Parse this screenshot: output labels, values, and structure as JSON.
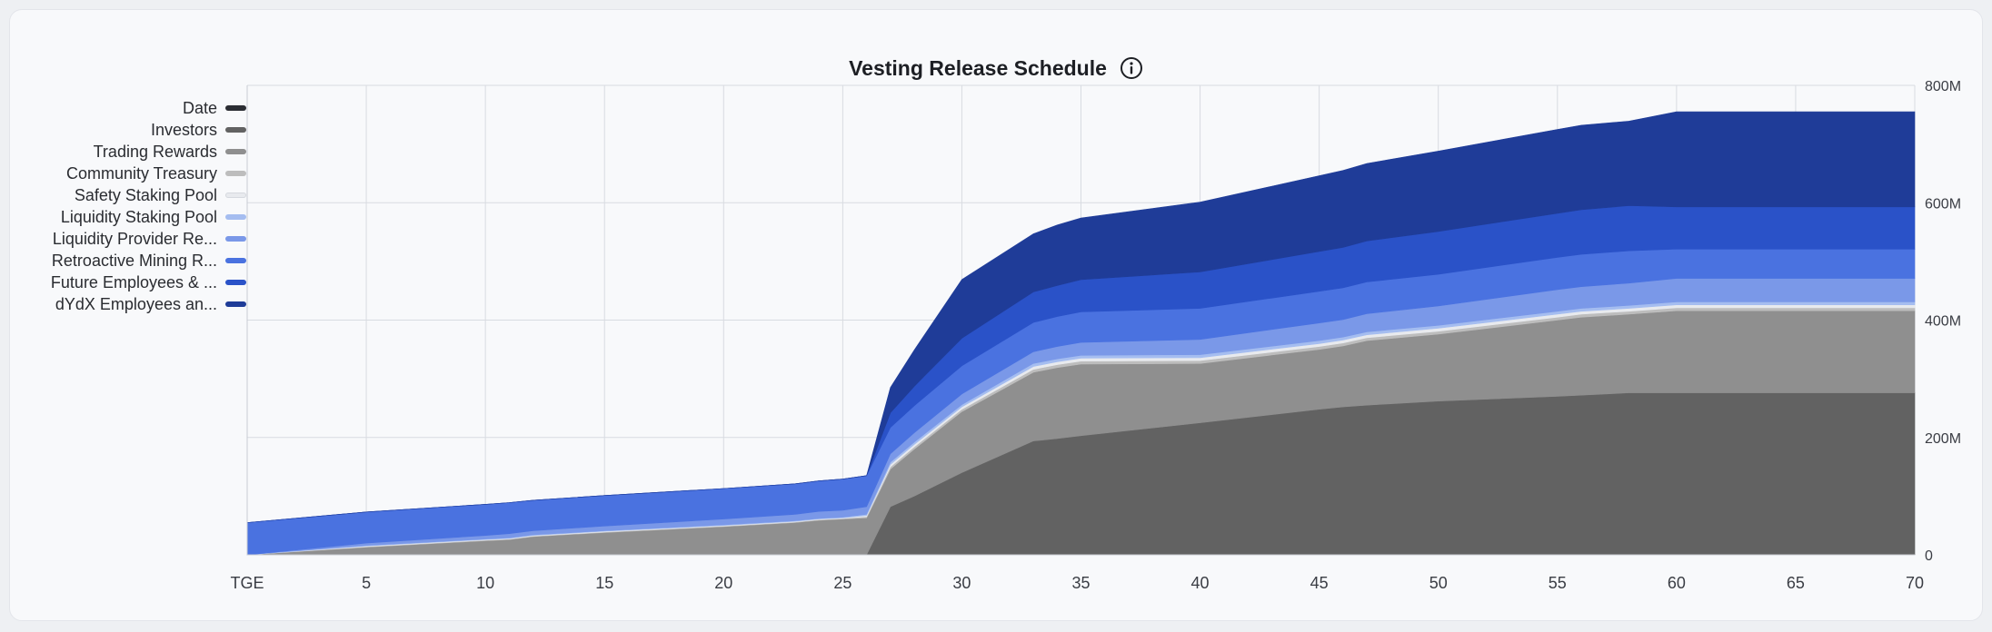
{
  "chart_data": {
    "type": "area",
    "stacked": true,
    "title": "Vesting Release Schedule",
    "x_ticks": [
      0,
      5,
      10,
      15,
      20,
      25,
      30,
      35,
      40,
      45,
      50,
      55,
      60,
      65,
      70
    ],
    "x_tick_labels": [
      "TGE",
      "5",
      "10",
      "15",
      "20",
      "25",
      "30",
      "35",
      "40",
      "45",
      "50",
      "55",
      "60",
      "65",
      "70"
    ],
    "y_ticks": [
      0,
      200,
      400,
      600,
      800
    ],
    "y_tick_labels": [
      "0",
      "200M",
      "400M",
      "600M",
      "800M"
    ],
    "xlim": [
      0,
      70
    ],
    "ylim": [
      0,
      800
    ],
    "legend_position": "left",
    "legend": [
      {
        "name": "Date",
        "color": "#2b2d33"
      },
      {
        "name": "Investors",
        "color": "#626262"
      },
      {
        "name": "Trading Rewards",
        "color": "#8f8f8f"
      },
      {
        "name": "Community Treasury",
        "color": "#bdbdbd"
      },
      {
        "name": "Safety Staking Pool",
        "color": "#e8eaee"
      },
      {
        "name": "Liquidity Staking Pool",
        "color": "#a5bdf0"
      },
      {
        "name": "Liquidity Provider Re...",
        "color": "#7a98e8"
      },
      {
        "name": "Retroactive Mining R...",
        "color": "#4a72e0"
      },
      {
        "name": "Future Employees & ...",
        "color": "#2a52c8"
      },
      {
        "name": "dYdX Employees an...",
        "color": "#1f3c98"
      }
    ],
    "x": [
      0,
      5,
      10,
      11,
      12,
      15,
      20,
      23,
      24,
      25,
      26,
      27,
      28,
      30,
      33,
      34,
      35,
      40,
      45,
      46,
      47,
      50,
      55,
      56,
      58,
      60,
      61,
      65,
      70
    ],
    "series": [
      {
        "name": "Investors",
        "color": "#626262",
        "values": [
          0,
          0,
          0,
          0,
          0,
          0,
          0,
          0,
          0,
          0,
          0,
          82,
          100,
          140,
          194,
          198,
          203,
          225,
          248,
          252,
          255,
          262,
          270,
          272,
          276,
          276,
          276,
          276,
          276
        ]
      },
      {
        "name": "Trading Rewards",
        "color": "#8f8f8f",
        "values": [
          0,
          13,
          24,
          26,
          31,
          38,
          48,
          55,
          59,
          61,
          63,
          64,
          80,
          104,
          117,
          121,
          122,
          101,
          102,
          104,
          110,
          114,
          130,
          133,
          134,
          140,
          140,
          140,
          140
        ]
      },
      {
        "name": "Community Treasury",
        "color": "#bdbdbd",
        "values": [
          0,
          1,
          1,
          1,
          1,
          1,
          1,
          1,
          1,
          1,
          2,
          4,
          4,
          4,
          5,
          5,
          5,
          5,
          5,
          5,
          5,
          5,
          5,
          5,
          5,
          5,
          5,
          5,
          5
        ]
      },
      {
        "name": "Safety Staking Pool",
        "color": "#e8eaee",
        "values": [
          0,
          1,
          1,
          1,
          1,
          1,
          1,
          1,
          1,
          1,
          2,
          4,
          4,
          4,
          5,
          5,
          5,
          5,
          5,
          5,
          5,
          5,
          5,
          5,
          5,
          5,
          5,
          5,
          5
        ]
      },
      {
        "name": "Liquidity Staking Pool",
        "color": "#a5bdf0",
        "values": [
          0,
          1,
          1,
          1,
          1,
          1,
          1,
          1,
          1,
          1,
          2,
          4,
          4,
          4,
          5,
          5,
          5,
          5,
          5,
          5,
          5,
          5,
          5,
          5,
          5,
          5,
          5,
          5,
          5
        ]
      },
      {
        "name": "Liquidity Provider Re...",
        "color": "#7a98e8",
        "values": [
          0,
          4,
          6,
          7,
          7,
          8,
          10,
          11,
          12,
          12,
          13,
          14,
          16,
          18,
          20,
          21,
          22,
          26,
          30,
          30,
          31,
          33,
          37,
          37,
          38,
          40,
          40,
          40,
          40
        ]
      },
      {
        "name": "Retroactive Mining R...",
        "color": "#4a72e0",
        "values": [
          55,
          53,
          53,
          53,
          52,
          52,
          52,
          52,
          52,
          53,
          53,
          45,
          46,
          48,
          50,
          51,
          52,
          53,
          54,
          54,
          54,
          54,
          55,
          55,
          55,
          50,
          50,
          50,
          50
        ]
      },
      {
        "name": "Future Employees & ...",
        "color": "#2a52c8",
        "values": [
          0,
          0,
          0,
          0,
          0,
          0,
          0,
          0,
          0,
          0,
          0,
          25,
          33,
          47,
          52,
          53,
          55,
          62,
          68,
          69,
          70,
          73,
          75,
          76,
          77,
          72,
          72,
          72,
          72
        ]
      },
      {
        "name": "dYdX Employees an...",
        "color": "#1f3c98",
        "values": [
          0,
          0,
          0,
          0,
          0,
          0,
          0,
          0,
          0,
          0,
          0,
          43,
          62,
          100,
          99,
          103,
          105,
          119,
          129,
          131,
          132,
          137,
          143,
          144,
          144,
          162,
          162,
          162,
          162
        ]
      }
    ]
  }
}
